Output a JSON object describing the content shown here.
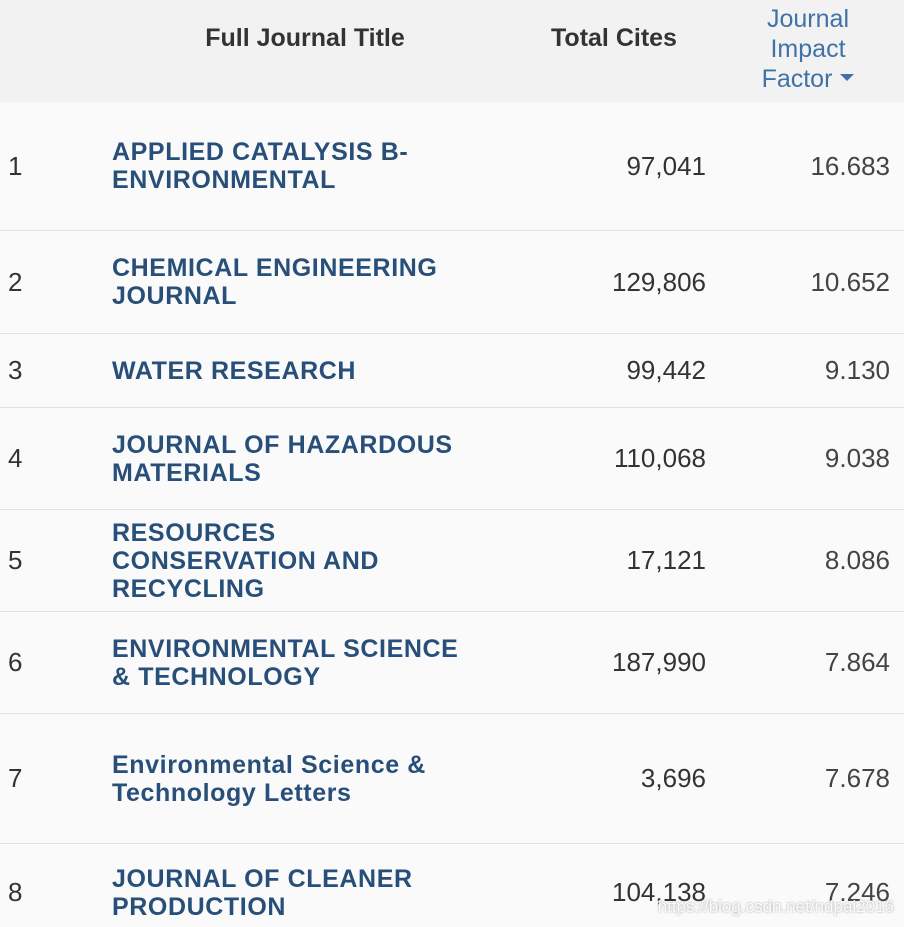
{
  "header": {
    "title_label": "Full Journal Title",
    "cites_label": "Total Cites",
    "jif_label_line1": "Journal",
    "jif_label_line2": "Impact",
    "jif_label_line3": "Factor"
  },
  "rows": [
    {
      "rank": "1",
      "title_line1": "APPLIED CATALYSIS B-",
      "title_line2": "ENVIRONMENTAL",
      "title_line3": "",
      "cites": "97,041",
      "jif": "16.683"
    },
    {
      "rank": "2",
      "title_line1": "CHEMICAL ENGINEERING",
      "title_line2": "JOURNAL",
      "title_line3": "",
      "cites": "129,806",
      "jif": "10.652"
    },
    {
      "rank": "3",
      "title_line1": "WATER RESEARCH",
      "title_line2": "",
      "title_line3": "",
      "cites": "99,442",
      "jif": "9.130"
    },
    {
      "rank": "4",
      "title_line1": "JOURNAL OF HAZARDOUS",
      "title_line2": "MATERIALS",
      "title_line3": "",
      "cites": "110,068",
      "jif": "9.038"
    },
    {
      "rank": "5",
      "title_line1": "RESOURCES",
      "title_line2": "CONSERVATION AND",
      "title_line3": "RECYCLING",
      "cites": "17,121",
      "jif": "8.086"
    },
    {
      "rank": "6",
      "title_line1": "ENVIRONMENTAL SCIENCE",
      "title_line2": "& TECHNOLOGY",
      "title_line3": "",
      "cites": "187,990",
      "jif": "7.864"
    },
    {
      "rank": "7",
      "title_line1": "Environmental Science &",
      "title_line2": "Technology Letters",
      "title_line3": "",
      "cites": "3,696",
      "jif": "7.678"
    },
    {
      "rank": "8",
      "title_line1": "JOURNAL OF CLEANER",
      "title_line2": "PRODUCTION",
      "title_line3": "",
      "cites": "104,138",
      "jif": "7.246"
    }
  ],
  "watermark": "https://blog.csdn.net/ndpai2016",
  "colors": {
    "title_link": "#274f79",
    "header_link": "#3f72a6",
    "header_bg": "#f2f2f2",
    "row_bg": "#fafafa",
    "divider": "#e2e2e2"
  }
}
